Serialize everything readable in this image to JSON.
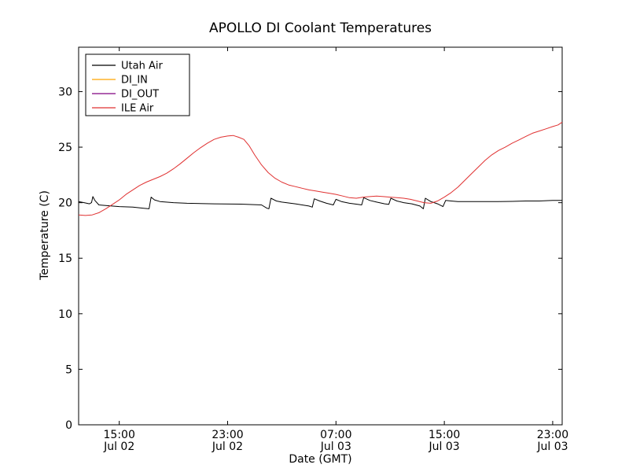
{
  "figure": {
    "title": "APOLLO DI Coolant Temperatures",
    "xlabel": "Date (GMT)",
    "ylabel": "Temperature (C)"
  },
  "chart_data": {
    "type": "line",
    "title": "APOLLO DI Coolant Temperatures",
    "xlabel": "Date (GMT)",
    "ylabel": "Temperature (C)",
    "x_unit": "hours since Jul 02 12:00 GMT",
    "xlim": [
      0,
      35.7
    ],
    "ylim": [
      0,
      34
    ],
    "yticks": [
      0,
      5,
      10,
      15,
      20,
      25,
      30
    ],
    "xticks": [
      {
        "t": 3,
        "line1": "15:00",
        "line2": "Jul 02"
      },
      {
        "t": 11,
        "line1": "23:00",
        "line2": "Jul 02"
      },
      {
        "t": 19,
        "line1": "07:00",
        "line2": "Jul 03"
      },
      {
        "t": 27,
        "line1": "15:00",
        "line2": "Jul 03"
      },
      {
        "t": 35,
        "line1": "23:00",
        "line2": "Jul 03"
      }
    ],
    "legend": {
      "position": "upper-left",
      "entries": [
        {
          "name": "Utah Air",
          "color": "#000000"
        },
        {
          "name": "DI_IN",
          "color": "#ffa500"
        },
        {
          "name": "DI_OUT",
          "color": "#800080"
        },
        {
          "name": "ILE Air",
          "color": "#e03131"
        }
      ]
    },
    "series": [
      {
        "name": "Utah Air",
        "color": "#000000",
        "points": [
          [
            0,
            20.1
          ],
          [
            0.4,
            20.0
          ],
          [
            0.8,
            19.9
          ],
          [
            0.95,
            20.0
          ],
          [
            1.05,
            20.55
          ],
          [
            1.2,
            20.2
          ],
          [
            1.5,
            19.8
          ],
          [
            2,
            19.75
          ],
          [
            3,
            19.65
          ],
          [
            4,
            19.6
          ],
          [
            4.8,
            19.5
          ],
          [
            5.2,
            19.45
          ],
          [
            5.35,
            20.5
          ],
          [
            5.6,
            20.25
          ],
          [
            6,
            20.1
          ],
          [
            7,
            20.0
          ],
          [
            8,
            19.95
          ],
          [
            10,
            19.9
          ],
          [
            12,
            19.87
          ],
          [
            13.5,
            19.8
          ],
          [
            13.9,
            19.5
          ],
          [
            14.05,
            19.45
          ],
          [
            14.2,
            20.4
          ],
          [
            14.6,
            20.15
          ],
          [
            15,
            20.05
          ],
          [
            16,
            19.9
          ],
          [
            17,
            19.7
          ],
          [
            17.25,
            19.6
          ],
          [
            17.4,
            20.35
          ],
          [
            17.8,
            20.15
          ],
          [
            18.3,
            19.95
          ],
          [
            18.8,
            19.8
          ],
          [
            19.0,
            20.3
          ],
          [
            19.4,
            20.1
          ],
          [
            20,
            19.95
          ],
          [
            20.6,
            19.85
          ],
          [
            20.9,
            19.8
          ],
          [
            21.05,
            20.45
          ],
          [
            21.5,
            20.2
          ],
          [
            22,
            20.05
          ],
          [
            22.6,
            19.9
          ],
          [
            22.9,
            19.85
          ],
          [
            23.05,
            20.4
          ],
          [
            23.5,
            20.15
          ],
          [
            24,
            20.0
          ],
          [
            24.6,
            19.9
          ],
          [
            25.2,
            19.7
          ],
          [
            25.45,
            19.45
          ],
          [
            25.6,
            20.4
          ],
          [
            26,
            20.1
          ],
          [
            26.5,
            19.9
          ],
          [
            26.9,
            19.65
          ],
          [
            27.1,
            20.2
          ],
          [
            27.5,
            20.15
          ],
          [
            28,
            20.1
          ],
          [
            29,
            20.1
          ],
          [
            30,
            20.1
          ],
          [
            31,
            20.1
          ],
          [
            32,
            20.12
          ],
          [
            33,
            20.15
          ],
          [
            34,
            20.15
          ],
          [
            35,
            20.2
          ],
          [
            35.7,
            20.2
          ]
        ]
      },
      {
        "name": "DI_IN",
        "color": "#ffa500",
        "points": []
      },
      {
        "name": "DI_OUT",
        "color": "#800080",
        "points": []
      },
      {
        "name": "ILE Air",
        "color": "#e03131",
        "points": [
          [
            0,
            18.9
          ],
          [
            0.5,
            18.85
          ],
          [
            1,
            18.9
          ],
          [
            1.5,
            19.1
          ],
          [
            2,
            19.45
          ],
          [
            2.5,
            19.85
          ],
          [
            3,
            20.25
          ],
          [
            3.5,
            20.75
          ],
          [
            4,
            21.15
          ],
          [
            4.5,
            21.55
          ],
          [
            5,
            21.85
          ],
          [
            5.5,
            22.1
          ],
          [
            6,
            22.35
          ],
          [
            6.5,
            22.65
          ],
          [
            7,
            23.05
          ],
          [
            7.5,
            23.5
          ],
          [
            8,
            24.0
          ],
          [
            8.5,
            24.5
          ],
          [
            9,
            24.95
          ],
          [
            9.5,
            25.35
          ],
          [
            10,
            25.7
          ],
          [
            10.5,
            25.9
          ],
          [
            11,
            26.0
          ],
          [
            11.4,
            26.05
          ],
          [
            11.8,
            25.9
          ],
          [
            12.2,
            25.7
          ],
          [
            12.6,
            25.1
          ],
          [
            13,
            24.3
          ],
          [
            13.5,
            23.4
          ],
          [
            14,
            22.7
          ],
          [
            14.5,
            22.2
          ],
          [
            15,
            21.85
          ],
          [
            15.5,
            21.6
          ],
          [
            16,
            21.45
          ],
          [
            16.5,
            21.3
          ],
          [
            17,
            21.15
          ],
          [
            17.5,
            21.05
          ],
          [
            18,
            20.95
          ],
          [
            18.5,
            20.85
          ],
          [
            19,
            20.75
          ],
          [
            19.5,
            20.6
          ],
          [
            20,
            20.45
          ],
          [
            20.5,
            20.4
          ],
          [
            21,
            20.5
          ],
          [
            21.5,
            20.55
          ],
          [
            22,
            20.6
          ],
          [
            22.5,
            20.55
          ],
          [
            23,
            20.5
          ],
          [
            23.5,
            20.45
          ],
          [
            24,
            20.4
          ],
          [
            24.5,
            20.3
          ],
          [
            25,
            20.15
          ],
          [
            25.5,
            20.0
          ],
          [
            26,
            19.95
          ],
          [
            26.5,
            20.15
          ],
          [
            27,
            20.5
          ],
          [
            27.5,
            20.9
          ],
          [
            28,
            21.4
          ],
          [
            28.5,
            22.0
          ],
          [
            29,
            22.6
          ],
          [
            29.5,
            23.2
          ],
          [
            30,
            23.8
          ],
          [
            30.5,
            24.3
          ],
          [
            31,
            24.7
          ],
          [
            31.5,
            25.0
          ],
          [
            32,
            25.35
          ],
          [
            32.5,
            25.65
          ],
          [
            33,
            25.95
          ],
          [
            33.5,
            26.25
          ],
          [
            34,
            26.45
          ],
          [
            34.5,
            26.65
          ],
          [
            35,
            26.85
          ],
          [
            35.4,
            27.0
          ],
          [
            35.7,
            27.25
          ]
        ]
      }
    ]
  }
}
